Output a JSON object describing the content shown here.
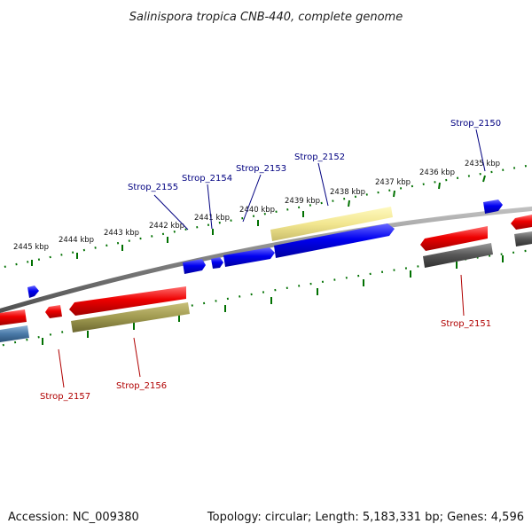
{
  "title": "Salinispora tropica CNB-440, complete genome",
  "footer": {
    "accession": "Accession: NC_009380",
    "summary": "Topology: circular; Length: 5,183,331 bp; Genes: 4,596"
  },
  "colors": {
    "forward_cds": "#0000ee",
    "reverse_cds": "#ee0000",
    "forward_label": "#000080",
    "reverse_label": "#b00000",
    "tick": "#007000",
    "backbone": "#808080",
    "pale_yellow": "#f0e68c",
    "olive": "#a09a50",
    "dark_gray": "#555555",
    "steel_blue": "#4a7aa8"
  },
  "ticks": [
    {
      "label": "2435 kbp"
    },
    {
      "label": "2436 kbp"
    },
    {
      "label": "2437 kbp"
    },
    {
      "label": "2438 kbp"
    },
    {
      "label": "2439 kbp"
    },
    {
      "label": "2440 kbp"
    },
    {
      "label": "2441 kbp"
    },
    {
      "label": "2442 kbp"
    },
    {
      "label": "2443 kbp"
    },
    {
      "label": "2444 kbp"
    },
    {
      "label": "2445 kbp"
    }
  ],
  "forward_labels": [
    {
      "name": "Strop_2155"
    },
    {
      "name": "Strop_2154"
    },
    {
      "name": "Strop_2153"
    },
    {
      "name": "Strop_2152"
    },
    {
      "name": "Strop_2150"
    }
  ],
  "reverse_labels": [
    {
      "name": "Strop_2157"
    },
    {
      "name": "Strop_2156"
    },
    {
      "name": "Strop_2151"
    }
  ]
}
